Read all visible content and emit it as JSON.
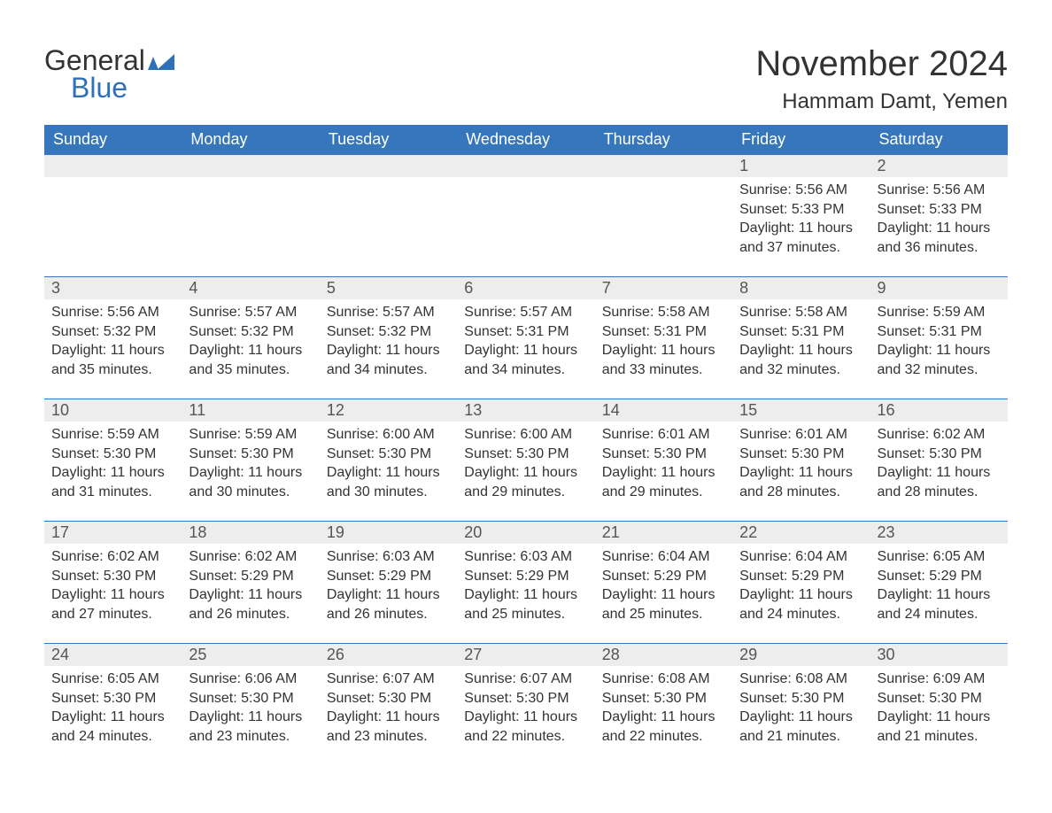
{
  "logo": {
    "line1": "General",
    "line2": "Blue",
    "iconColor": "#2d72b8"
  },
  "header": {
    "monthTitle": "November 2024",
    "location": "Hammam Damt, Yemen"
  },
  "dayNames": [
    "Sunday",
    "Monday",
    "Tuesday",
    "Wednesday",
    "Thursday",
    "Friday",
    "Saturday"
  ],
  "colors": {
    "headerBg": "#3576bd",
    "headerText": "#ffffff",
    "dayRowBg": "#ededed",
    "dayRowBorder": "#3576bd",
    "text": "#333333",
    "logoBlue": "#2d72b8"
  },
  "weeks": [
    [
      {
        "empty": true
      },
      {
        "empty": true
      },
      {
        "empty": true
      },
      {
        "empty": true
      },
      {
        "empty": true
      },
      {
        "day": "1",
        "sunrise": "Sunrise: 5:56 AM",
        "sunset": "Sunset: 5:33 PM",
        "d1": "Daylight: 11 hours",
        "d2": "and 37 minutes."
      },
      {
        "day": "2",
        "sunrise": "Sunrise: 5:56 AM",
        "sunset": "Sunset: 5:33 PM",
        "d1": "Daylight: 11 hours",
        "d2": "and 36 minutes."
      }
    ],
    [
      {
        "day": "3",
        "sunrise": "Sunrise: 5:56 AM",
        "sunset": "Sunset: 5:32 PM",
        "d1": "Daylight: 11 hours",
        "d2": "and 35 minutes."
      },
      {
        "day": "4",
        "sunrise": "Sunrise: 5:57 AM",
        "sunset": "Sunset: 5:32 PM",
        "d1": "Daylight: 11 hours",
        "d2": "and 35 minutes."
      },
      {
        "day": "5",
        "sunrise": "Sunrise: 5:57 AM",
        "sunset": "Sunset: 5:32 PM",
        "d1": "Daylight: 11 hours",
        "d2": "and 34 minutes."
      },
      {
        "day": "6",
        "sunrise": "Sunrise: 5:57 AM",
        "sunset": "Sunset: 5:31 PM",
        "d1": "Daylight: 11 hours",
        "d2": "and 34 minutes."
      },
      {
        "day": "7",
        "sunrise": "Sunrise: 5:58 AM",
        "sunset": "Sunset: 5:31 PM",
        "d1": "Daylight: 11 hours",
        "d2": "and 33 minutes."
      },
      {
        "day": "8",
        "sunrise": "Sunrise: 5:58 AM",
        "sunset": "Sunset: 5:31 PM",
        "d1": "Daylight: 11 hours",
        "d2": "and 32 minutes."
      },
      {
        "day": "9",
        "sunrise": "Sunrise: 5:59 AM",
        "sunset": "Sunset: 5:31 PM",
        "d1": "Daylight: 11 hours",
        "d2": "and 32 minutes."
      }
    ],
    [
      {
        "day": "10",
        "sunrise": "Sunrise: 5:59 AM",
        "sunset": "Sunset: 5:30 PM",
        "d1": "Daylight: 11 hours",
        "d2": "and 31 minutes."
      },
      {
        "day": "11",
        "sunrise": "Sunrise: 5:59 AM",
        "sunset": "Sunset: 5:30 PM",
        "d1": "Daylight: 11 hours",
        "d2": "and 30 minutes."
      },
      {
        "day": "12",
        "sunrise": "Sunrise: 6:00 AM",
        "sunset": "Sunset: 5:30 PM",
        "d1": "Daylight: 11 hours",
        "d2": "and 30 minutes."
      },
      {
        "day": "13",
        "sunrise": "Sunrise: 6:00 AM",
        "sunset": "Sunset: 5:30 PM",
        "d1": "Daylight: 11 hours",
        "d2": "and 29 minutes."
      },
      {
        "day": "14",
        "sunrise": "Sunrise: 6:01 AM",
        "sunset": "Sunset: 5:30 PM",
        "d1": "Daylight: 11 hours",
        "d2": "and 29 minutes."
      },
      {
        "day": "15",
        "sunrise": "Sunrise: 6:01 AM",
        "sunset": "Sunset: 5:30 PM",
        "d1": "Daylight: 11 hours",
        "d2": "and 28 minutes."
      },
      {
        "day": "16",
        "sunrise": "Sunrise: 6:02 AM",
        "sunset": "Sunset: 5:30 PM",
        "d1": "Daylight: 11 hours",
        "d2": "and 28 minutes."
      }
    ],
    [
      {
        "day": "17",
        "sunrise": "Sunrise: 6:02 AM",
        "sunset": "Sunset: 5:30 PM",
        "d1": "Daylight: 11 hours",
        "d2": "and 27 minutes."
      },
      {
        "day": "18",
        "sunrise": "Sunrise: 6:02 AM",
        "sunset": "Sunset: 5:29 PM",
        "d1": "Daylight: 11 hours",
        "d2": "and 26 minutes."
      },
      {
        "day": "19",
        "sunrise": "Sunrise: 6:03 AM",
        "sunset": "Sunset: 5:29 PM",
        "d1": "Daylight: 11 hours",
        "d2": "and 26 minutes."
      },
      {
        "day": "20",
        "sunrise": "Sunrise: 6:03 AM",
        "sunset": "Sunset: 5:29 PM",
        "d1": "Daylight: 11 hours",
        "d2": "and 25 minutes."
      },
      {
        "day": "21",
        "sunrise": "Sunrise: 6:04 AM",
        "sunset": "Sunset: 5:29 PM",
        "d1": "Daylight: 11 hours",
        "d2": "and 25 minutes."
      },
      {
        "day": "22",
        "sunrise": "Sunrise: 6:04 AM",
        "sunset": "Sunset: 5:29 PM",
        "d1": "Daylight: 11 hours",
        "d2": "and 24 minutes."
      },
      {
        "day": "23",
        "sunrise": "Sunrise: 6:05 AM",
        "sunset": "Sunset: 5:29 PM",
        "d1": "Daylight: 11 hours",
        "d2": "and 24 minutes."
      }
    ],
    [
      {
        "day": "24",
        "sunrise": "Sunrise: 6:05 AM",
        "sunset": "Sunset: 5:30 PM",
        "d1": "Daylight: 11 hours",
        "d2": "and 24 minutes."
      },
      {
        "day": "25",
        "sunrise": "Sunrise: 6:06 AM",
        "sunset": "Sunset: 5:30 PM",
        "d1": "Daylight: 11 hours",
        "d2": "and 23 minutes."
      },
      {
        "day": "26",
        "sunrise": "Sunrise: 6:07 AM",
        "sunset": "Sunset: 5:30 PM",
        "d1": "Daylight: 11 hours",
        "d2": "and 23 minutes."
      },
      {
        "day": "27",
        "sunrise": "Sunrise: 6:07 AM",
        "sunset": "Sunset: 5:30 PM",
        "d1": "Daylight: 11 hours",
        "d2": "and 22 minutes."
      },
      {
        "day": "28",
        "sunrise": "Sunrise: 6:08 AM",
        "sunset": "Sunset: 5:30 PM",
        "d1": "Daylight: 11 hours",
        "d2": "and 22 minutes."
      },
      {
        "day": "29",
        "sunrise": "Sunrise: 6:08 AM",
        "sunset": "Sunset: 5:30 PM",
        "d1": "Daylight: 11 hours",
        "d2": "and 21 minutes."
      },
      {
        "day": "30",
        "sunrise": "Sunrise: 6:09 AM",
        "sunset": "Sunset: 5:30 PM",
        "d1": "Daylight: 11 hours",
        "d2": "and 21 minutes."
      }
    ]
  ]
}
